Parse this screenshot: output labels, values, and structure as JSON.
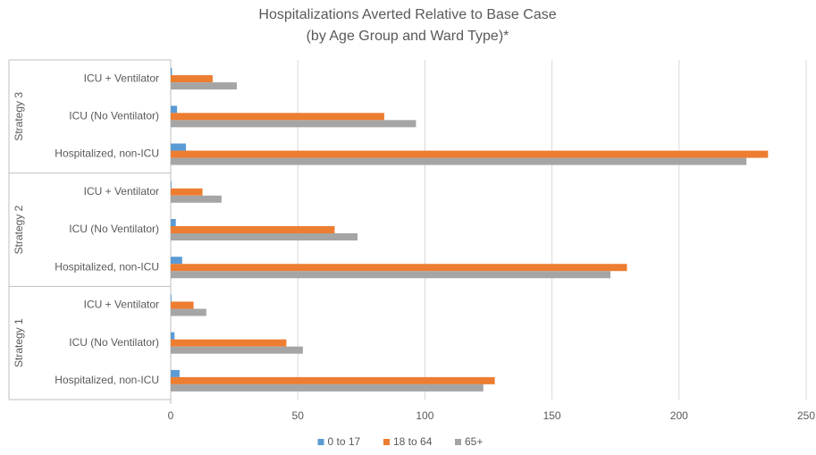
{
  "chart_data": {
    "type": "bar",
    "orientation": "horizontal",
    "title": "Hospitalizations Averted Relative to Base Case",
    "subtitle": "(by Age Group and Ward Type)*",
    "groups": [
      {
        "name": "Strategy 3",
        "categories": [
          "ICU + Ventilator",
          "ICU (No Ventilator)",
          "Hospitalized, non-ICU"
        ]
      },
      {
        "name": "Strategy 2",
        "categories": [
          "ICU + Ventilator",
          "ICU (No Ventilator)",
          "Hospitalized, non-ICU"
        ]
      },
      {
        "name": "Strategy 1",
        "categories": [
          "ICU + Ventilator",
          "ICU (No Ventilator)",
          "Hospitalized, non-ICU"
        ]
      }
    ],
    "series": [
      {
        "name": "0 to 17",
        "color": "#5b9bd5",
        "values": [
          0.5,
          2.5,
          6,
          0.3,
          2,
          4.5,
          0.3,
          1.5,
          3.5
        ]
      },
      {
        "name": "18 to 64",
        "color": "#ed7d31",
        "values": [
          16.5,
          84,
          235,
          12.5,
          64.5,
          179.5,
          9,
          45.5,
          127.5
        ]
      },
      {
        "name": "65+",
        "color": "#a5a5a5",
        "values": [
          26,
          96.5,
          226.5,
          20,
          73.5,
          173,
          14,
          52,
          123
        ]
      }
    ],
    "xlim": [
      0,
      250
    ],
    "xticks": [
      0,
      50,
      100,
      150,
      200,
      250
    ],
    "grid": true,
    "legend": "bottom"
  }
}
